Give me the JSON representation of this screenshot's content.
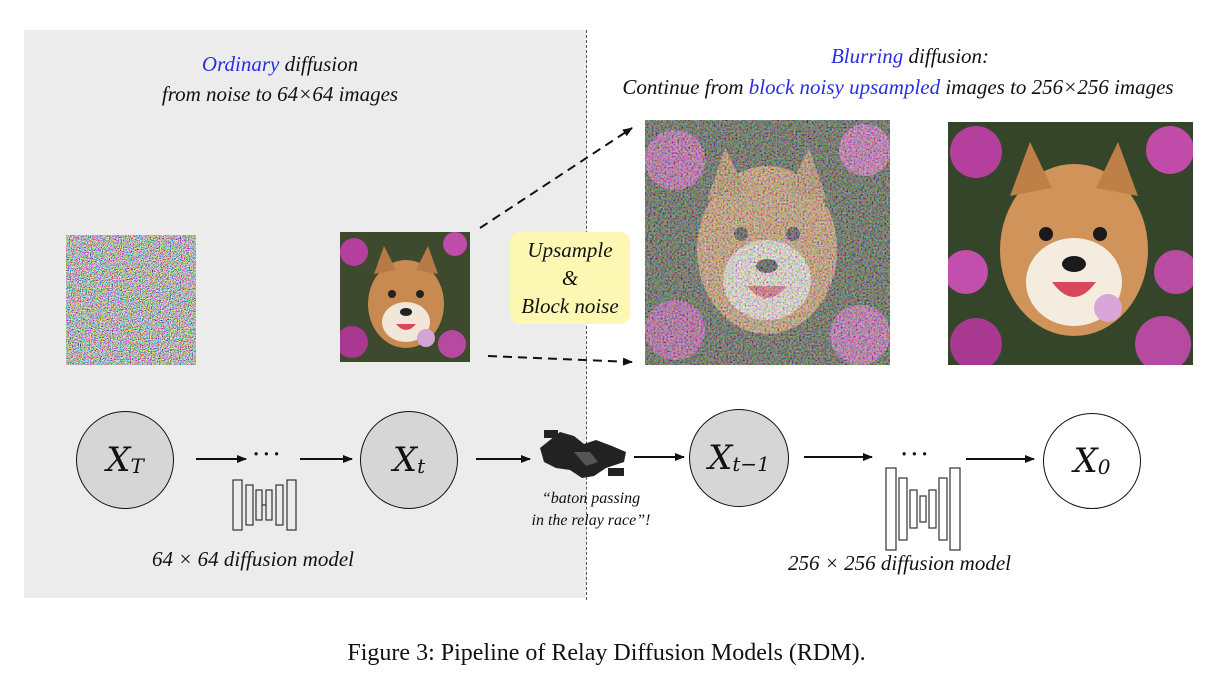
{
  "left": {
    "title_blue": "Ordinary",
    "title_rest": " diffusion",
    "subtitle": "from noise to 64×64 images",
    "model_label": "64 × 64 diffusion model"
  },
  "right": {
    "title_blue": "Blurring",
    "title_rest": " diffusion:",
    "sub_pre": "Continue from ",
    "sub_blue": "block noisy upsampled",
    "sub_post": " images to 256×256 images",
    "model_label": "256 × 256 diffusion model"
  },
  "badge": {
    "line1": "Upsample",
    "line2": "&",
    "line3": "Block noise"
  },
  "nodes": {
    "xT": {
      "base": "X",
      "sub": "T"
    },
    "xt": {
      "base": "X",
      "sub": "t"
    },
    "xt1": {
      "base": "X",
      "sub": "t−1"
    },
    "x0": {
      "base": "X",
      "sub": "0"
    }
  },
  "ellipsis": "···",
  "baton": {
    "line1": "“baton passing",
    "line2": "in the relay race”!"
  },
  "caption": "Figure 3: Pipeline of Relay Diffusion Models (RDM).",
  "colors": {
    "accent_blue": "#2a2ee0",
    "panel_grey": "#ececec",
    "node_grey": "#d6d6d6",
    "badge_yellow": "#fcf8b3"
  },
  "icons": [
    "noise-image",
    "dog-64-image",
    "dog-noisy-256-image",
    "dog-256-image",
    "unet-icon",
    "handshake-icon"
  ]
}
